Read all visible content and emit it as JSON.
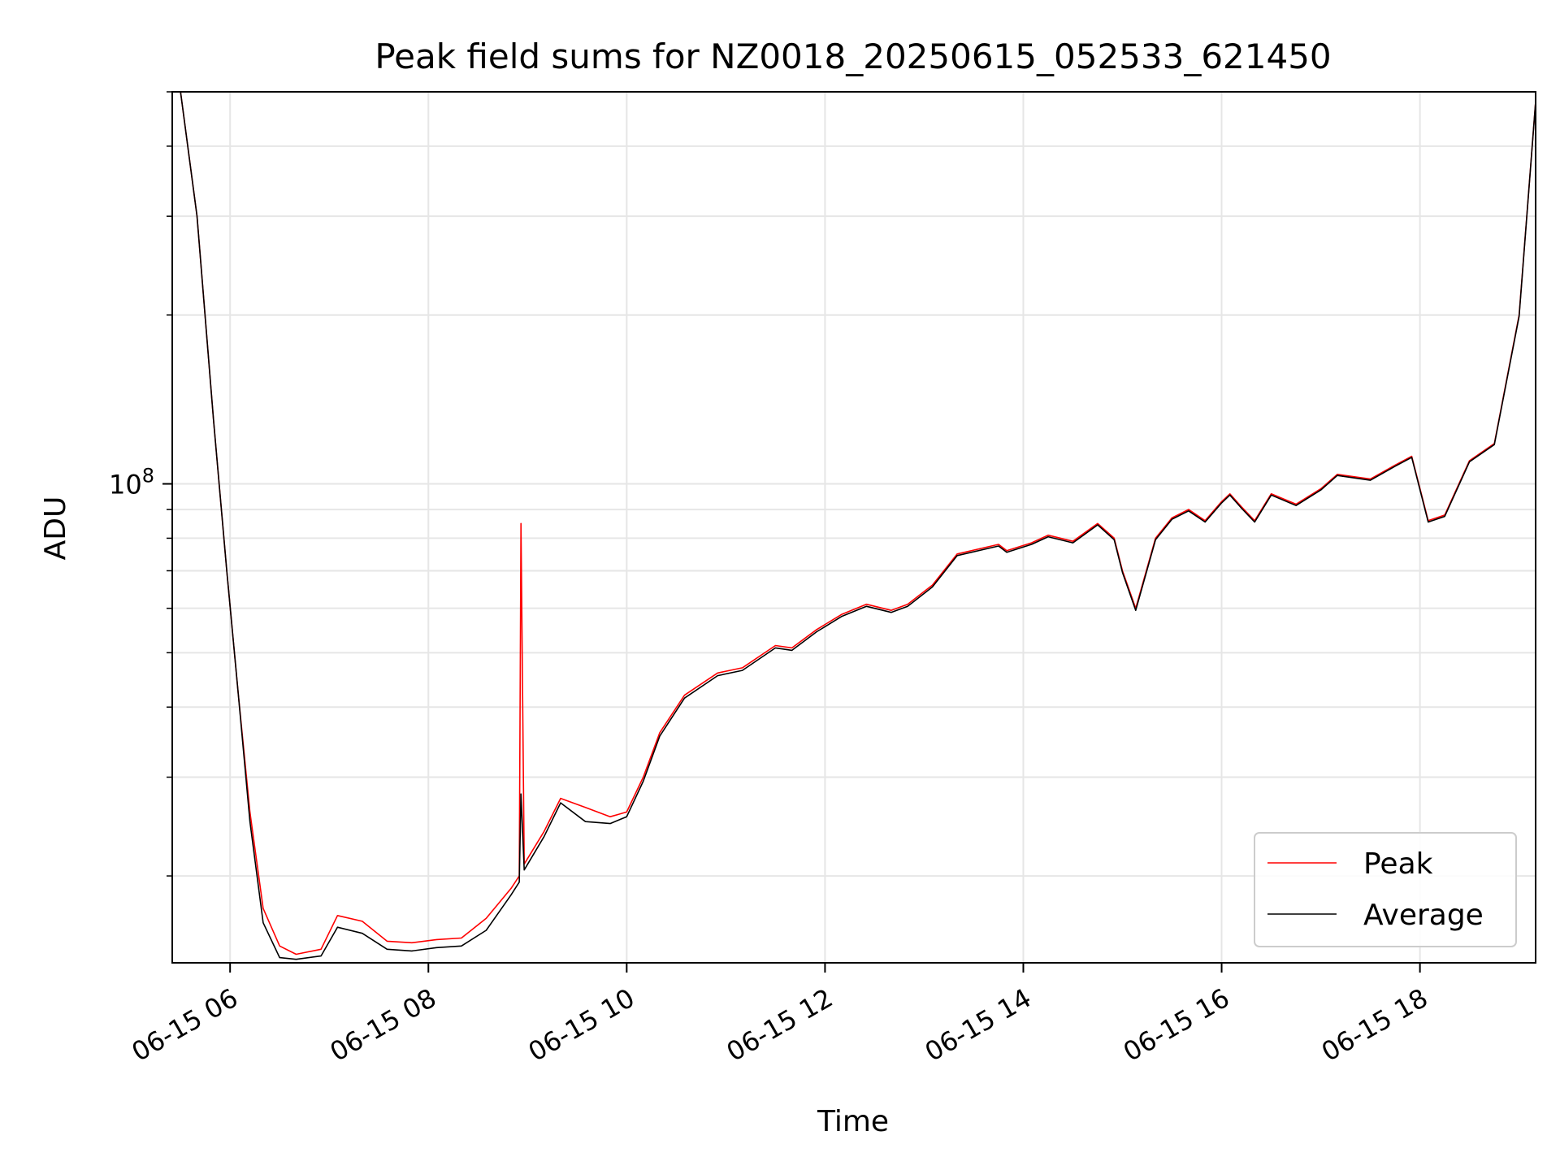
{
  "chart_data": {
    "type": "line",
    "title": "Peak field sums for NZ0018_20250615_052533_621450",
    "xlabel": "Time",
    "ylabel": "ADU",
    "y_scale": "log",
    "ylim": [
      14000000,
      500000000
    ],
    "xlim": [
      "2025-06-15 05:25",
      "2025-06-15 19:10"
    ],
    "grid": true,
    "legend_position": "lower right",
    "x_ticks": [
      {
        "value": "2025-06-15 06:00",
        "label": "06-15 06"
      },
      {
        "value": "2025-06-15 08:00",
        "label": "06-15 08"
      },
      {
        "value": "2025-06-15 10:00",
        "label": "06-15 10"
      },
      {
        "value": "2025-06-15 12:00",
        "label": "06-15 12"
      },
      {
        "value": "2025-06-15 14:00",
        "label": "06-15 14"
      },
      {
        "value": "2025-06-15 16:00",
        "label": "06-15 16"
      },
      {
        "value": "2025-06-15 18:00",
        "label": "06-15 18"
      }
    ],
    "y_ticks": [
      {
        "value": 100000000,
        "label_base": "10",
        "label_exp": "8"
      }
    ],
    "series": [
      {
        "name": "Peak",
        "color": "#ff0000",
        "x": [
          "2025-06-15 05:30",
          "2025-06-15 05:40",
          "2025-06-15 05:50",
          "2025-06-15 05:58",
          "2025-06-15 06:05",
          "2025-06-15 06:12",
          "2025-06-15 06:20",
          "2025-06-15 06:30",
          "2025-06-15 06:40",
          "2025-06-15 06:55",
          "2025-06-15 07:05",
          "2025-06-15 07:20",
          "2025-06-15 07:35",
          "2025-06-15 07:50",
          "2025-06-15 08:05",
          "2025-06-15 08:20",
          "2025-06-15 08:35",
          "2025-06-15 08:50",
          "2025-06-15 08:55",
          "2025-06-15 08:56",
          "2025-06-15 08:58",
          "2025-06-15 09:10",
          "2025-06-15 09:20",
          "2025-06-15 09:35",
          "2025-06-15 09:50",
          "2025-06-15 10:00",
          "2025-06-15 10:10",
          "2025-06-15 10:20",
          "2025-06-15 10:35",
          "2025-06-15 10:55",
          "2025-06-15 11:10",
          "2025-06-15 11:30",
          "2025-06-15 11:40",
          "2025-06-15 11:55",
          "2025-06-15 12:10",
          "2025-06-15 12:25",
          "2025-06-15 12:40",
          "2025-06-15 12:50",
          "2025-06-15 13:05",
          "2025-06-15 13:20",
          "2025-06-15 13:45",
          "2025-06-15 13:50",
          "2025-06-15 14:05",
          "2025-06-15 14:15",
          "2025-06-15 14:30",
          "2025-06-15 14:45",
          "2025-06-15 14:55",
          "2025-06-15 15:00",
          "2025-06-15 15:08",
          "2025-06-15 15:20",
          "2025-06-15 15:30",
          "2025-06-15 15:40",
          "2025-06-15 15:50",
          "2025-06-15 16:00",
          "2025-06-15 16:05",
          "2025-06-15 16:12",
          "2025-06-15 16:20",
          "2025-06-15 16:30",
          "2025-06-15 16:45",
          "2025-06-15 17:00",
          "2025-06-15 17:10",
          "2025-06-15 17:30",
          "2025-06-15 17:45",
          "2025-06-15 17:55",
          "2025-06-15 18:05",
          "2025-06-15 18:15",
          "2025-06-15 18:30",
          "2025-06-15 18:45",
          "2025-06-15 19:00",
          "2025-06-15 19:10"
        ],
        "y": [
          500000000,
          300000000,
          130000000,
          70000000,
          42000000,
          26000000,
          17500000,
          15000000,
          14500000,
          14800000,
          17000000,
          16600000,
          15300000,
          15200000,
          15400000,
          15500000,
          16800000,
          19000000,
          20000000,
          85000000,
          21000000,
          24000000,
          27500000,
          26500000,
          25500000,
          26000000,
          30000000,
          36000000,
          42000000,
          46000000,
          47000000,
          51500000,
          51000000,
          55000000,
          58500000,
          61000000,
          59500000,
          61000000,
          66000000,
          75000000,
          78000000,
          76000000,
          78500000,
          81000000,
          79000000,
          85000000,
          80000000,
          70000000,
          60000000,
          80000000,
          87000000,
          90000000,
          86000000,
          93000000,
          96000000,
          91000000,
          86000000,
          96000000,
          92000000,
          98000000,
          104000000,
          102000000,
          108000000,
          112000000,
          86000000,
          88000000,
          110000000,
          118000000,
          200000000,
          480000000
        ]
      },
      {
        "name": "Average",
        "color": "#000000",
        "x": [
          "2025-06-15 05:30",
          "2025-06-15 05:40",
          "2025-06-15 05:50",
          "2025-06-15 05:58",
          "2025-06-15 06:05",
          "2025-06-15 06:12",
          "2025-06-15 06:20",
          "2025-06-15 06:30",
          "2025-06-15 06:40",
          "2025-06-15 06:55",
          "2025-06-15 07:05",
          "2025-06-15 07:20",
          "2025-06-15 07:35",
          "2025-06-15 07:50",
          "2025-06-15 08:05",
          "2025-06-15 08:20",
          "2025-06-15 08:35",
          "2025-06-15 08:50",
          "2025-06-15 08:55",
          "2025-06-15 08:56",
          "2025-06-15 08:58",
          "2025-06-15 09:10",
          "2025-06-15 09:20",
          "2025-06-15 09:35",
          "2025-06-15 09:50",
          "2025-06-15 10:00",
          "2025-06-15 10:10",
          "2025-06-15 10:20",
          "2025-06-15 10:35",
          "2025-06-15 10:55",
          "2025-06-15 11:10",
          "2025-06-15 11:30",
          "2025-06-15 11:40",
          "2025-06-15 11:55",
          "2025-06-15 12:10",
          "2025-06-15 12:25",
          "2025-06-15 12:40",
          "2025-06-15 12:50",
          "2025-06-15 13:05",
          "2025-06-15 13:20",
          "2025-06-15 13:45",
          "2025-06-15 13:50",
          "2025-06-15 14:05",
          "2025-06-15 14:15",
          "2025-06-15 14:30",
          "2025-06-15 14:45",
          "2025-06-15 14:55",
          "2025-06-15 15:00",
          "2025-06-15 15:08",
          "2025-06-15 15:20",
          "2025-06-15 15:30",
          "2025-06-15 15:40",
          "2025-06-15 15:50",
          "2025-06-15 16:00",
          "2025-06-15 16:05",
          "2025-06-15 16:12",
          "2025-06-15 16:20",
          "2025-06-15 16:30",
          "2025-06-15 16:45",
          "2025-06-15 17:00",
          "2025-06-15 17:10",
          "2025-06-15 17:30",
          "2025-06-15 17:45",
          "2025-06-15 17:55",
          "2025-06-15 18:05",
          "2025-06-15 18:15",
          "2025-06-15 18:30",
          "2025-06-15 18:45",
          "2025-06-15 19:00",
          "2025-06-15 19:10"
        ],
        "y": [
          500000000,
          300000000,
          130000000,
          70000000,
          42000000,
          25000000,
          16500000,
          14300000,
          14200000,
          14400000,
          16200000,
          15800000,
          14800000,
          14700000,
          14900000,
          15000000,
          16000000,
          18500000,
          19500000,
          28000000,
          20500000,
          23500000,
          27000000,
          25000000,
          24800000,
          25500000,
          29500000,
          35500000,
          41500000,
          45500000,
          46500000,
          51000000,
          50500000,
          54500000,
          58000000,
          60500000,
          59000000,
          60500000,
          65500000,
          74500000,
          77500000,
          75500000,
          78000000,
          80500000,
          78500000,
          84500000,
          79500000,
          69500000,
          59500000,
          79500000,
          86500000,
          89500000,
          85500000,
          92500000,
          95500000,
          90500000,
          85500000,
          95500000,
          91500000,
          97500000,
          103500000,
          101500000,
          107500000,
          111500000,
          85500000,
          87500000,
          109500000,
          117500000,
          199000000,
          480000000
        ]
      }
    ]
  }
}
